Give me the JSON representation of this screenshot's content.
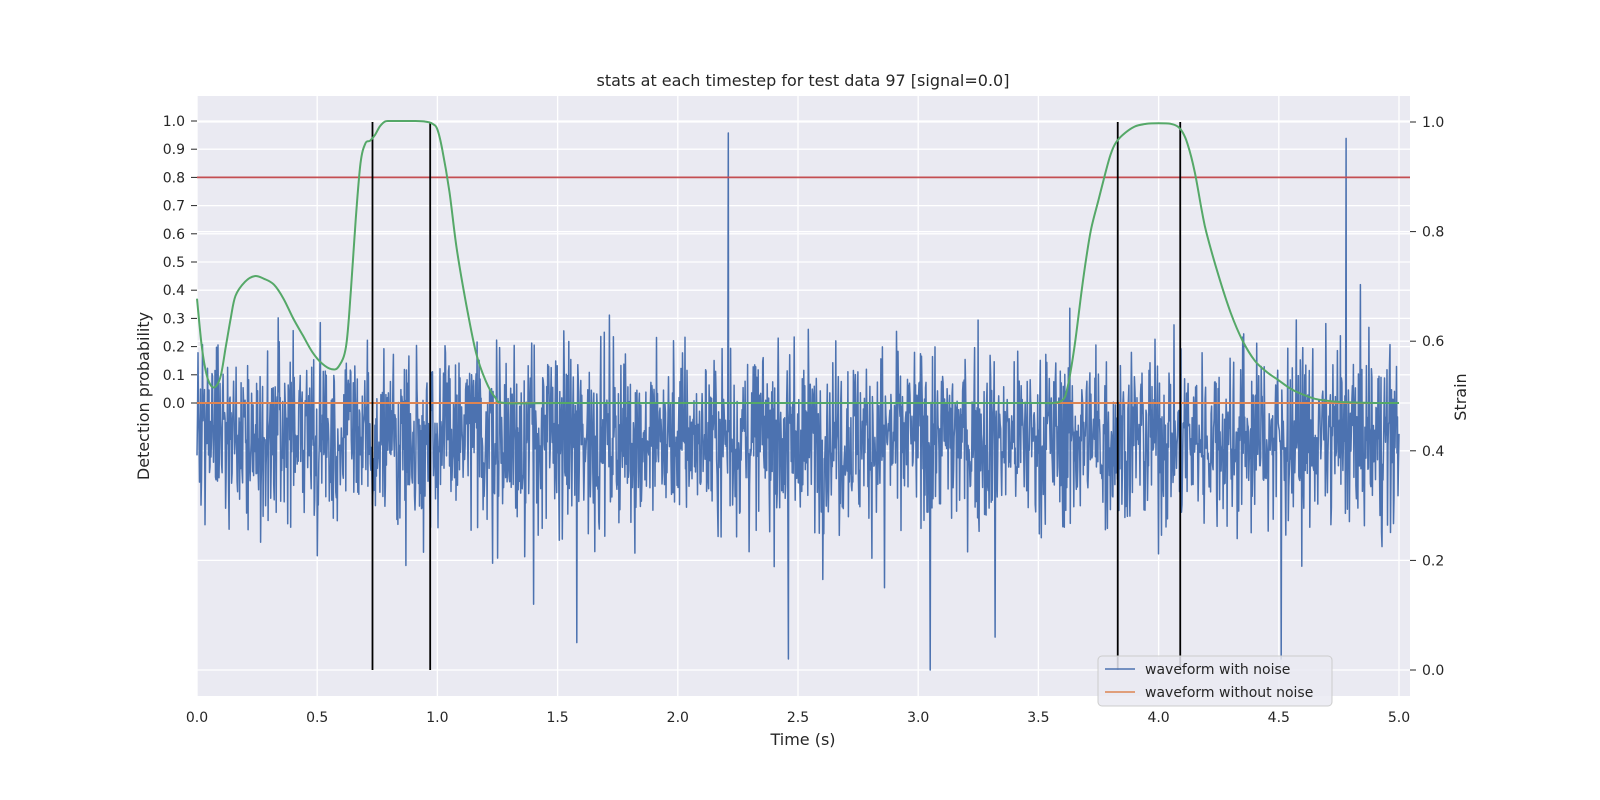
{
  "chart_data": {
    "type": "line",
    "title": "stats at each timestep for test data 97 [signal=0.0]",
    "xlabel": "Time (s)",
    "ylabel_left": "Detection probability",
    "ylabel_right": "Strain",
    "xlim": [
      0.0,
      5.02
    ],
    "x_ticks": [
      "0.0",
      "0.5",
      "1.0",
      "1.5",
      "2.0",
      "2.5",
      "3.0",
      "3.5",
      "4.0",
      "4.5",
      "5.0"
    ],
    "left_axis": {
      "ticks": [
        "0.0",
        "0.1",
        "0.2",
        "0.3",
        "0.4",
        "0.5",
        "0.6",
        "0.7",
        "0.8",
        "0.9",
        "1.0"
      ],
      "note": "Detection probability scale; 0.0 sits at the middle of the plot and 1.0 near the top"
    },
    "right_axis": {
      "ylim": [
        -0.05,
        1.04
      ],
      "ticks": [
        "0.0",
        "0.2",
        "0.4",
        "0.6",
        "0.8",
        "1.0"
      ]
    },
    "grid": true,
    "legend_position": "lower-right",
    "colors": {
      "noisy": "#4c72b0",
      "clean": "#dd8452",
      "probability": "#55a868",
      "threshold": "#c44e52",
      "markers": "#000000",
      "background": "#eaeaf2"
    },
    "series": [
      {
        "name": "waveform with noise",
        "axis": "right",
        "description": "dense noisy strain time series centred near 0.42, fluctuating roughly between 0.0 and 0.98",
        "center": 0.425,
        "points": 2400,
        "extreme_spikes": [
          {
            "x": 2.21,
            "y": 0.98
          },
          {
            "x": 4.78,
            "y": 0.97
          },
          {
            "x": 3.05,
            "y": 0.0
          },
          {
            "x": 2.46,
            "y": 0.02
          },
          {
            "x": 4.51,
            "y": 0.02
          },
          {
            "x": 1.58,
            "y": 0.05
          },
          {
            "x": 3.32,
            "y": 0.06
          },
          {
            "x": 2.86,
            "y": 0.15
          },
          {
            "x": 1.4,
            "y": 0.12
          }
        ]
      },
      {
        "name": "waveform without noise",
        "axis": "left",
        "description": "flat clean waveform at 0.0",
        "x": [
          0.0,
          5.0
        ],
        "y": [
          0.0,
          0.0
        ]
      },
      {
        "name": "",
        "axis": "left",
        "description": "detection probability curve",
        "x": [
          0.0,
          0.02,
          0.04,
          0.06,
          0.08,
          0.1,
          0.12,
          0.14,
          0.16,
          0.2,
          0.24,
          0.28,
          0.32,
          0.36,
          0.4,
          0.44,
          0.48,
          0.52,
          0.56,
          0.59,
          0.62,
          0.64,
          0.66,
          0.68,
          0.7,
          0.72,
          0.74,
          0.76,
          0.78,
          0.8,
          0.85,
          0.9,
          0.95,
          0.98,
          1.0,
          1.02,
          1.05,
          1.08,
          1.12,
          1.16,
          1.2,
          1.24,
          1.28,
          1.5,
          2.0,
          2.5,
          3.0,
          3.5,
          3.56,
          3.6,
          3.62,
          3.65,
          3.68,
          3.7,
          3.72,
          3.75,
          3.78,
          3.8,
          3.82,
          3.85,
          3.9,
          3.95,
          4.0,
          4.05,
          4.08,
          4.1,
          4.12,
          4.15,
          4.18,
          4.2,
          4.25,
          4.3,
          4.35,
          4.4,
          4.45,
          4.5,
          4.55,
          4.6,
          4.65,
          4.7,
          4.75,
          4.8,
          4.9,
          5.0
        ],
        "y": [
          0.37,
          0.2,
          0.1,
          0.06,
          0.06,
          0.1,
          0.2,
          0.3,
          0.38,
          0.43,
          0.45,
          0.44,
          0.42,
          0.37,
          0.3,
          0.24,
          0.18,
          0.14,
          0.12,
          0.13,
          0.2,
          0.4,
          0.65,
          0.85,
          0.92,
          0.93,
          0.95,
          0.98,
          0.997,
          1.0,
          1.0,
          1.0,
          0.998,
          0.99,
          0.97,
          0.9,
          0.75,
          0.55,
          0.35,
          0.18,
          0.08,
          0.02,
          0.0,
          0.0,
          0.0,
          0.0,
          0.0,
          0.0,
          0.0,
          0.01,
          0.05,
          0.2,
          0.4,
          0.52,
          0.62,
          0.72,
          0.82,
          0.88,
          0.92,
          0.95,
          0.98,
          0.99,
          0.992,
          0.99,
          0.98,
          0.96,
          0.92,
          0.82,
          0.68,
          0.6,
          0.45,
          0.32,
          0.22,
          0.15,
          0.11,
          0.08,
          0.05,
          0.03,
          0.015,
          0.008,
          0.004,
          0.002,
          0.0,
          0.0
        ]
      }
    ],
    "threshold": {
      "axis": "left",
      "y": 0.8
    },
    "vertical_markers": {
      "axis": "right",
      "x": [
        0.73,
        0.97,
        3.83,
        4.09
      ],
      "ymin": 0.0,
      "ymax": 1.0
    }
  }
}
